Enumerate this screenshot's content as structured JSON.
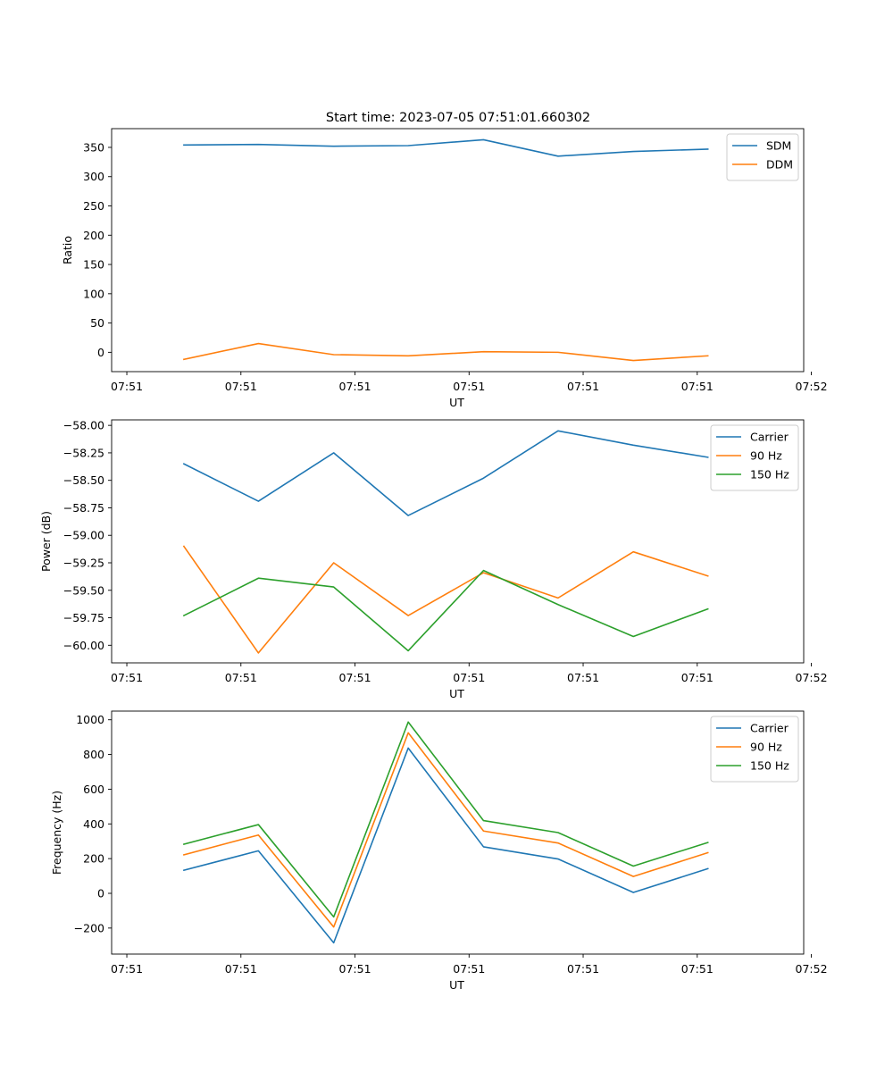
{
  "figure": {
    "title": "Start time: 2023-07-05 07:51:01.660302"
  },
  "chart_data": [
    {
      "type": "line",
      "title": "Start time: 2023-07-05 07:51:01.660302",
      "xlabel": "UT",
      "ylabel": "Ratio",
      "xlim": [
        -0.2,
        8.9
      ],
      "ylim": [
        -33,
        382
      ],
      "xticks": [
        0,
        1.5,
        3,
        4.5,
        6,
        7.5,
        9
      ],
      "xtick_labels": [
        "07:51",
        "07:51",
        "07:51",
        "07:51",
        "07:51",
        "07:51",
        "07:52"
      ],
      "yticks": [
        0,
        50,
        100,
        150,
        200,
        250,
        300,
        350
      ],
      "ytick_labels": [
        "0",
        "50",
        "100",
        "150",
        "200",
        "250",
        "300",
        "350"
      ],
      "legend_position": "top-right",
      "x": [
        0.75,
        1.73,
        2.72,
        3.7,
        4.69,
        5.67,
        6.66,
        7.64
      ],
      "series": [
        {
          "name": "SDM",
          "color": "#1f77b4",
          "values": [
            354,
            355,
            352,
            353,
            363,
            335,
            343,
            347
          ]
        },
        {
          "name": "DDM",
          "color": "#ff7f0e",
          "values": [
            -12,
            15,
            -4,
            -6,
            1,
            0,
            -14,
            -6
          ]
        }
      ]
    },
    {
      "type": "line",
      "xlabel": "UT",
      "ylabel": "Power (dB)",
      "xlim": [
        -0.2,
        8.9
      ],
      "ylim": [
        -60.16,
        -57.95
      ],
      "xticks": [
        0,
        1.5,
        3,
        4.5,
        6,
        7.5,
        9
      ],
      "xtick_labels": [
        "07:51",
        "07:51",
        "07:51",
        "07:51",
        "07:51",
        "07:51",
        "07:52"
      ],
      "yticks": [
        -60.0,
        -59.75,
        -59.5,
        -59.25,
        -59.0,
        -58.75,
        -58.5,
        -58.25,
        -58.0
      ],
      "ytick_labels": [
        "−60.00",
        "−59.75",
        "−59.50",
        "−59.25",
        "−59.00",
        "−58.75",
        "−58.50",
        "−58.25",
        "−58.00"
      ],
      "legend_position": "top-right",
      "x": [
        0.75,
        1.73,
        2.72,
        3.7,
        4.69,
        5.67,
        6.66,
        7.64
      ],
      "series": [
        {
          "name": "Carrier",
          "color": "#1f77b4",
          "values": [
            -58.35,
            -58.69,
            -58.25,
            -58.82,
            -58.48,
            -58.05,
            -58.18,
            -58.29
          ]
        },
        {
          "name": "90 Hz",
          "color": "#ff7f0e",
          "values": [
            -59.1,
            -60.07,
            -59.25,
            -59.73,
            -59.34,
            -59.57,
            -59.15,
            -59.37
          ]
        },
        {
          "name": "150 Hz",
          "color": "#2ca02c",
          "values": [
            -59.73,
            -59.39,
            -59.47,
            -60.05,
            -59.32,
            -59.63,
            -59.92,
            -59.67
          ]
        }
      ]
    },
    {
      "type": "line",
      "xlabel": "UT",
      "ylabel": "Frequency (Hz)",
      "xlim": [
        -0.2,
        8.9
      ],
      "ylim": [
        -350,
        1050
      ],
      "xticks": [
        0,
        1.5,
        3,
        4.5,
        6,
        7.5,
        9
      ],
      "xtick_labels": [
        "07:51",
        "07:51",
        "07:51",
        "07:51",
        "07:51",
        "07:51",
        "07:52"
      ],
      "yticks": [
        -200,
        0,
        200,
        400,
        600,
        800,
        1000
      ],
      "ytick_labels": [
        "−200",
        "0",
        "200",
        "400",
        "600",
        "800",
        "1000"
      ],
      "legend_position": "top-right",
      "x": [
        0.75,
        1.73,
        2.72,
        3.7,
        4.69,
        5.67,
        6.66,
        7.64
      ],
      "series": [
        {
          "name": "Carrier",
          "color": "#1f77b4",
          "values": [
            133,
            245,
            -285,
            837,
            268,
            198,
            5,
            142
          ]
        },
        {
          "name": "90 Hz",
          "color": "#ff7f0e",
          "values": [
            222,
            336,
            -194,
            925,
            359,
            290,
            97,
            234
          ]
        },
        {
          "name": "150 Hz",
          "color": "#2ca02c",
          "values": [
            283,
            396,
            -136,
            987,
            419,
            350,
            157,
            293
          ]
        }
      ]
    }
  ]
}
